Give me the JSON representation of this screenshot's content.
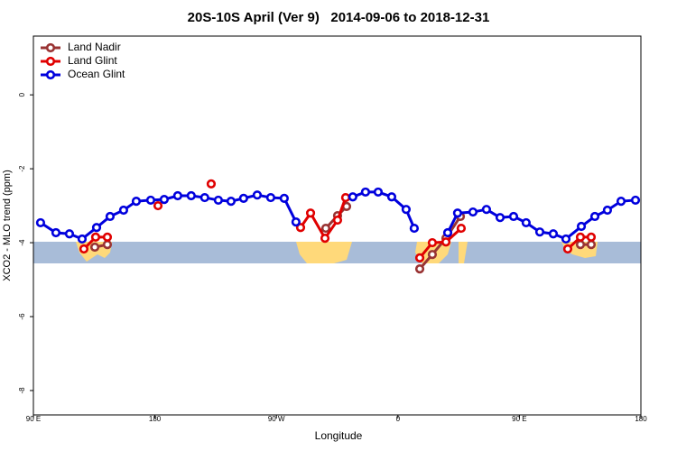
{
  "chart_data": {
    "type": "line",
    "title": "20S-10S April (Ver 9)   2014-09-06 to 2018-12-31",
    "x_label": "Longitude",
    "y_label": "XCO2 - MLO trend (ppm)",
    "xlim": [
      90,
      540
    ],
    "ylim": [
      -8.66,
      1.59
    ],
    "xticks": [
      {
        "value": 90,
        "label": "90 E"
      },
      180,
      {
        "value": 270,
        "label": "90 W"
      },
      {
        "value": 360,
        "label": "0"
      },
      {
        "value": 450,
        "label": "90 E"
      },
      180.0001
    ],
    "yticks": [
      0,
      -2,
      -4,
      -6,
      -8
    ],
    "legend": "top-left",
    "series": [
      {
        "name": "Land Nadir",
        "color": "#993333",
        "x": [
          135.5,
          144.8,
          null,
          306.6,
          315.3,
          322,
          null,
          376.2,
          385.5,
          395.6,
          406.3,
          null,
          495.2,
          503.2
        ],
        "values": [
          -4.12,
          -4.05,
          null,
          -3.61,
          -3.27,
          -3.02,
          null,
          -4.71,
          -4.32,
          -3.88,
          -3.29,
          null,
          -4.05,
          -4.05
        ]
      },
      {
        "name": "Land Glint",
        "color": "#e00000",
        "x": [
          127.4,
          136.1,
          144.8,
          null,
          182.3,
          null,
          221.7,
          null,
          287.9,
          295.3,
          306,
          315.3,
          321.3,
          null,
          376.2,
          385.5,
          395.6,
          406.9,
          null,
          485.8,
          495.2,
          503.2
        ],
        "values": [
          -4.17,
          -3.85,
          -3.85,
          null,
          -3.0,
          null,
          -2.41,
          null,
          -3.59,
          -3.2,
          -3.88,
          -3.39,
          -2.78,
          null,
          -4.41,
          -4.0,
          -3.98,
          -3.61,
          null,
          -4.17,
          -3.85,
          -3.85
        ]
      },
      {
        "name": "Ocean Glint",
        "color": "#0000dd",
        "x": [
          95.3,
          106.7,
          116.7,
          126.1,
          136.8,
          146.8,
          156.8,
          166.2,
          176.9,
          186.9,
          196.9,
          206.9,
          216.9,
          227,
          236.4,
          245.7,
          255.8,
          265.8,
          275.8,
          284.5,
          null,
          326.6,
          336,
          345.4,
          355.4,
          366.1,
          372.1,
          null,
          396.9,
          404.2,
          415.6,
          425.6,
          435.7,
          445.7,
          455,
          465.1,
          475.1,
          484.5,
          495.9,
          505.9,
          515.2,
          525.3,
          536
        ],
        "values": [
          -3.46,
          -3.73,
          -3.76,
          -3.9,
          -3.59,
          -3.29,
          -3.12,
          -2.88,
          -2.85,
          -2.83,
          -2.73,
          -2.73,
          -2.78,
          -2.85,
          -2.88,
          -2.8,
          -2.71,
          -2.78,
          -2.8,
          -3.44,
          null,
          -2.76,
          -2.63,
          -2.63,
          -2.76,
          -3.1,
          -3.61,
          null,
          -3.73,
          -3.2,
          -3.17,
          -3.1,
          -3.32,
          -3.29,
          -3.46,
          -3.71,
          -3.76,
          -3.9,
          -3.56,
          -3.29,
          -3.12,
          -2.88,
          -2.85
        ]
      }
    ]
  }
}
